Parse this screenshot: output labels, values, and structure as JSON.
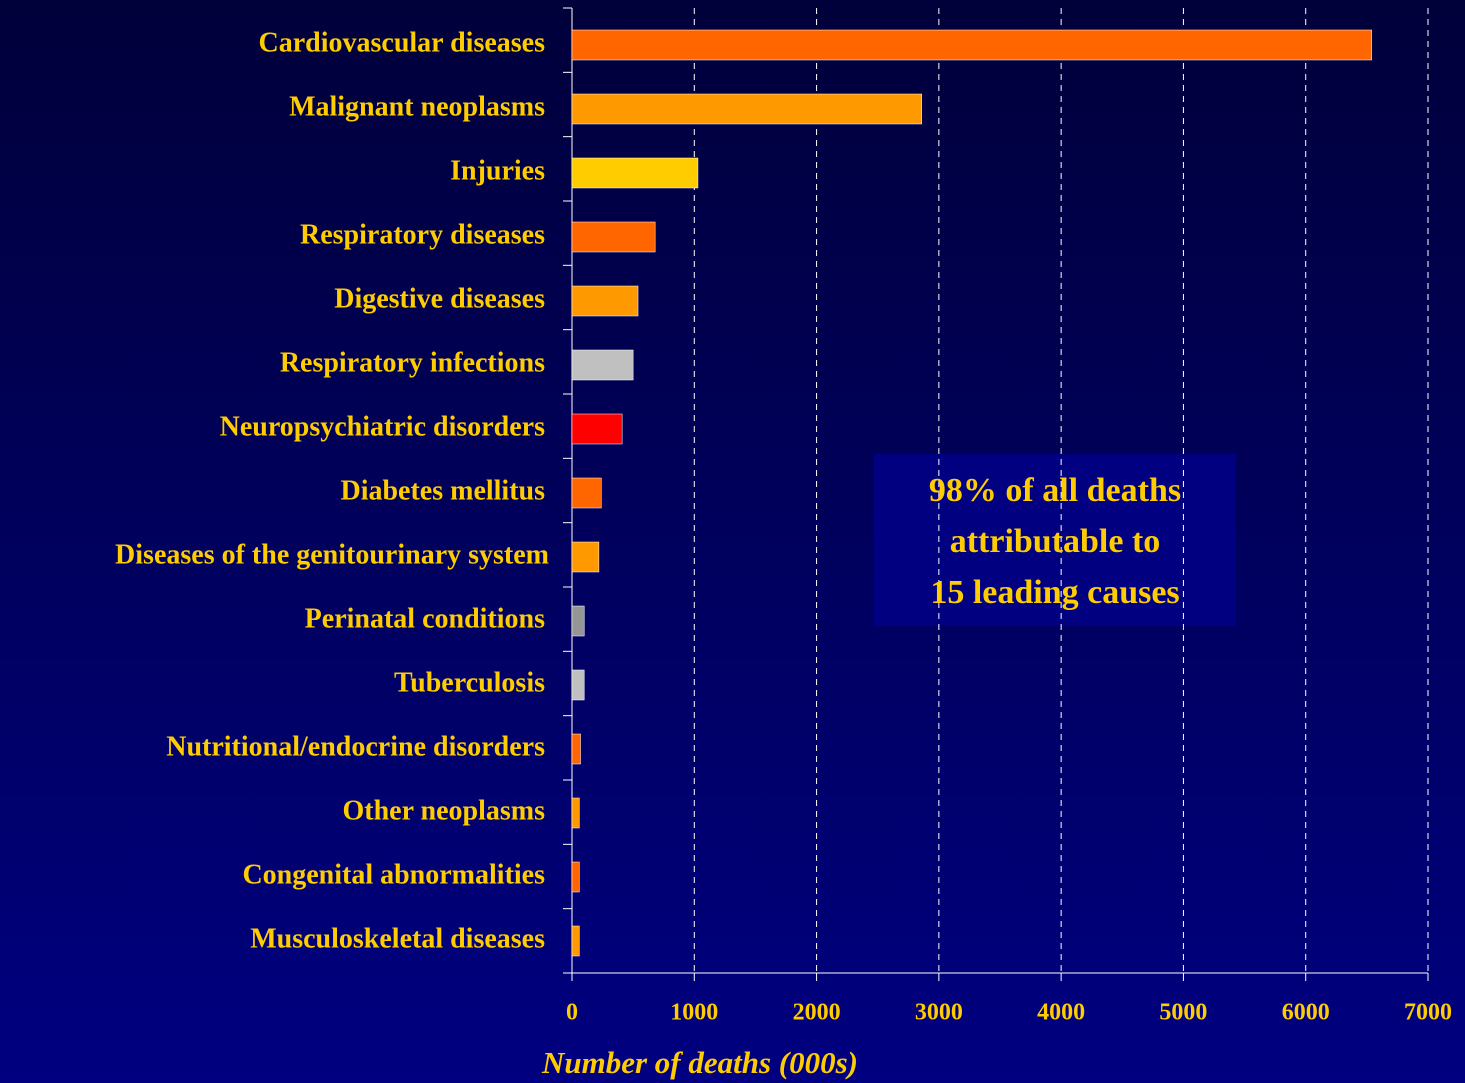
{
  "chart_data": {
    "type": "barh",
    "categories": [
      "Cardiovascular diseases",
      "Malignant neoplasms",
      "Injuries",
      "Respiratory diseases",
      "Digestive diseases",
      "Respiratory infections",
      "Neuropsychiatric disorders",
      "Diabetes mellitus",
      "Diseases of the genitourinary system",
      "Perinatal conditions",
      "Tuberculosis",
      "Nutritional/endocrine disorders",
      "Other neoplasms",
      "Congenital abnormalities",
      "Musculoskeletal diseases"
    ],
    "values": [
      6540,
      2860,
      1030,
      680,
      540,
      500,
      410,
      240,
      220,
      100,
      100,
      70,
      60,
      60,
      60
    ],
    "colors": [
      "#ff6600",
      "#ff9900",
      "#ffcc00",
      "#ff6600",
      "#ff9900",
      "#c0c0c0",
      "#ff0000",
      "#ff6600",
      "#ff9900",
      "#969696",
      "#c0c0c0",
      "#ff6600",
      "#ff9900",
      "#ff6600",
      "#ff9900"
    ],
    "xlabel": "Number of deaths (000s)",
    "xlim": [
      0,
      7000
    ],
    "xticks": [
      0,
      1000,
      2000,
      3000,
      4000,
      5000,
      6000,
      7000
    ],
    "grid": true,
    "annotation": [
      "98% of all deaths",
      "attributable to",
      "15 leading causes"
    ]
  }
}
